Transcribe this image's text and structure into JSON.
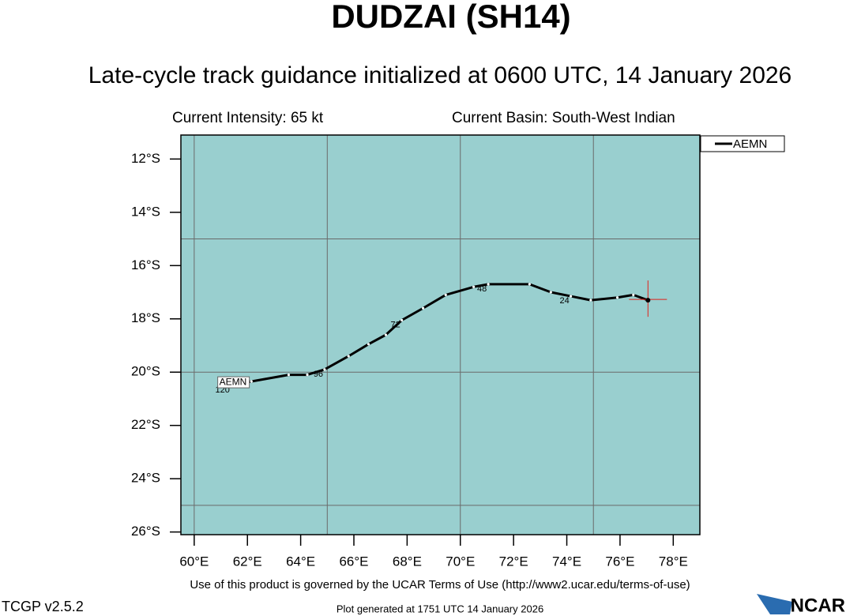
{
  "chart_data": {
    "type": "line",
    "title": "DUDZAI (SH14)",
    "subtitle": "Late-cycle track guidance initialized at 0600 UTC, 14 January 2026",
    "intensity": "Current Intensity: 65 kt",
    "basin": "Current Basin: South-West Indian",
    "x": [
      77.05,
      76.5,
      75.9,
      74.9,
      74.15,
      73.4,
      72.6,
      71.05,
      70.5,
      69.45,
      68.6,
      67.8,
      67.2,
      66.55,
      65.8,
      64.9,
      64.25,
      63.55,
      62.15,
      61.3
    ],
    "series": [
      {
        "name": "AEMN",
        "color": "#000000",
        "values": [
          -17.3,
          -17.1,
          -17.2,
          -17.3,
          -17.15,
          -17.0,
          -16.7,
          -16.7,
          -16.8,
          -17.1,
          -17.6,
          -18.05,
          -18.6,
          -18.95,
          -19.4,
          -19.9,
          -20.1,
          -20.1,
          -20.35,
          -20.5
        ],
        "point_labels": [
          null,
          null,
          null,
          null,
          "24",
          null,
          null,
          "48",
          null,
          null,
          null,
          "72",
          null,
          null,
          null,
          "96",
          null,
          null,
          null,
          "120"
        ]
      }
    ],
    "xlim": [
      59.5,
      79.0
    ],
    "ylim": [
      -26.1,
      -11.1
    ],
    "xticks": [
      {
        "value": 60,
        "label": "60°E"
      },
      {
        "value": 62,
        "label": "62°E"
      },
      {
        "value": 64,
        "label": "64°E"
      },
      {
        "value": 66,
        "label": "66°E"
      },
      {
        "value": 68,
        "label": "68°E"
      },
      {
        "value": 70,
        "label": "70°E"
      },
      {
        "value": 72,
        "label": "72°E"
      },
      {
        "value": 74,
        "label": "74°E"
      },
      {
        "value": 76,
        "label": "76°E"
      },
      {
        "value": 78,
        "label": "78°E"
      }
    ],
    "yticks": [
      {
        "value": -12,
        "label": "12°S"
      },
      {
        "value": -14,
        "label": "14°S"
      },
      {
        "value": -16,
        "label": "16°S"
      },
      {
        "value": -18,
        "label": "18°S"
      },
      {
        "value": -20,
        "label": "20°S"
      },
      {
        "value": -22,
        "label": "22°S"
      },
      {
        "value": -24,
        "label": "24°S"
      },
      {
        "value": -26,
        "label": "26°S"
      }
    ],
    "grid_x": [
      60,
      65,
      70,
      75
    ],
    "grid_y": [
      -15,
      -20,
      -25
    ],
    "ocean_color": "#99cfcf",
    "current_marker_color": "#e0201a",
    "terms": "Use of this product is governed by the UCAR Terms of Use (http://www2.ucar.edu/terms-of-use)",
    "version": "TCGP v2.5.2",
    "generated": "Plot generated at 1751 UTC   14 January 2026",
    "logo": "NCAR"
  }
}
